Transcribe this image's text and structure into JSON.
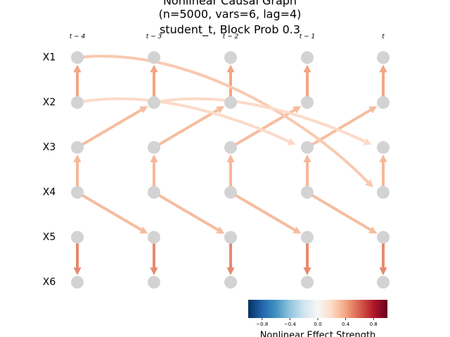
{
  "title_lines": [
    "Nonlinear Causal Graph",
    "(n=5000, vars=6, lag=4)",
    "student_t, Block Prob 0.3"
  ],
  "time_labels": [
    "t − 4",
    "t − 3",
    "t − 2",
    "t − 1",
    "t"
  ],
  "variables": [
    "X1",
    "X2",
    "X3",
    "X4",
    "X5",
    "X6"
  ],
  "node_color": "#d3d3d3",
  "edges": [
    {
      "source": [
        1,
        0
      ],
      "target": [
        0,
        0
      ],
      "color": "#f4a582"
    },
    {
      "source": [
        1,
        1
      ],
      "target": [
        0,
        1
      ],
      "color": "#f4a582"
    },
    {
      "source": [
        1,
        2
      ],
      "target": [
        0,
        2
      ],
      "color": "#f4a582"
    },
    {
      "source": [
        1,
        3
      ],
      "target": [
        0,
        3
      ],
      "color": "#f4a582"
    },
    {
      "source": [
        1,
        4
      ],
      "target": [
        0,
        4
      ],
      "color": "#f4a582"
    },
    {
      "source": [
        3,
        0
      ],
      "target": [
        2,
        0
      ],
      "color": "#f7b799"
    },
    {
      "source": [
        3,
        1
      ],
      "target": [
        2,
        1
      ],
      "color": "#f7b799"
    },
    {
      "source": [
        3,
        2
      ],
      "target": [
        2,
        2
      ],
      "color": "#f7b799"
    },
    {
      "source": [
        3,
        3
      ],
      "target": [
        2,
        3
      ],
      "color": "#f7b799"
    },
    {
      "source": [
        3,
        4
      ],
      "target": [
        2,
        4
      ],
      "color": "#f7b799"
    },
    {
      "source": [
        4,
        0
      ],
      "target": [
        5,
        0
      ],
      "color": "#e58a6f"
    },
    {
      "source": [
        4,
        1
      ],
      "target": [
        5,
        1
      ],
      "color": "#e58a6f"
    },
    {
      "source": [
        4,
        2
      ],
      "target": [
        5,
        2
      ],
      "color": "#e58a6f"
    },
    {
      "source": [
        4,
        3
      ],
      "target": [
        5,
        3
      ],
      "color": "#e58a6f"
    },
    {
      "source": [
        4,
        4
      ],
      "target": [
        5,
        4
      ],
      "color": "#e58a6f"
    },
    {
      "source": [
        2,
        0
      ],
      "target": [
        1,
        1
      ],
      "color": "#f6bd9f"
    },
    {
      "source": [
        2,
        1
      ],
      "target": [
        1,
        2
      ],
      "color": "#f6bd9f"
    },
    {
      "source": [
        2,
        2
      ],
      "target": [
        1,
        3
      ],
      "color": "#f6bd9f"
    },
    {
      "source": [
        2,
        3
      ],
      "target": [
        1,
        4
      ],
      "color": "#f6bd9f"
    },
    {
      "source": [
        3,
        0
      ],
      "target": [
        4,
        1
      ],
      "color": "#f6bd9f"
    },
    {
      "source": [
        3,
        1
      ],
      "target": [
        4,
        2
      ],
      "color": "#f6bd9f"
    },
    {
      "source": [
        3,
        2
      ],
      "target": [
        4,
        3
      ],
      "color": "#f6bd9f"
    },
    {
      "source": [
        3,
        3
      ],
      "target": [
        4,
        4
      ],
      "color": "#f6bd9f"
    },
    {
      "source": [
        0,
        0
      ],
      "target": [
        3,
        4
      ],
      "color": "#f9c9b0"
    },
    {
      "source": [
        1,
        0
      ],
      "target": [
        2,
        3
      ],
      "color": "#fcdac8"
    },
    {
      "source": [
        1,
        1
      ],
      "target": [
        2,
        4
      ],
      "color": "#fcdac8"
    }
  ],
  "colorbar": {
    "label": "Nonlinear Effect Strength",
    "lim": [
      -1,
      1
    ],
    "colors": [
      "#053061",
      "#2166ac",
      "#4393c3",
      "#92c5de",
      "#d1e5f0",
      "#f7f7f7",
      "#fddbc7",
      "#f4a582",
      "#d6604d",
      "#b2182b",
      "#67001f"
    ],
    "ticks": [
      {
        "value": -0.8,
        "label": "−0.8"
      },
      {
        "value": -0.4,
        "label": "−0.4"
      },
      {
        "value": 0,
        "label": "0.0"
      },
      0.4,
      0.8
    ]
  }
}
